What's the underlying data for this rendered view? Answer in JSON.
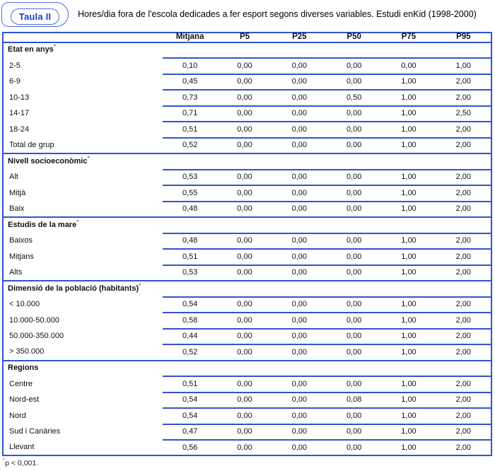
{
  "colors": {
    "accent": "#2f55cd",
    "accent_light": "#4f6ad8",
    "badge_text": "#1e3cd4"
  },
  "title_badge": "Taula II",
  "caption": "Hores/dia fora de l'escola dedicades a fer esport segons diverses variables. Estudi enKid (1998-2000)",
  "table": {
    "columns": [
      "Mitjana",
      "P5",
      "P25",
      "P50",
      "P75",
      "P95"
    ],
    "sections": [
      {
        "header": "Etat en anys*",
        "rows": [
          {
            "label": "2-5",
            "values": [
              "0,10",
              "0,00",
              "0,00",
              "0,00",
              "0,00",
              "1,00"
            ]
          },
          {
            "label": "6-9",
            "values": [
              "0,45",
              "0,00",
              "0,00",
              "0,00",
              "1,00",
              "2,00"
            ]
          },
          {
            "label": "10-13",
            "values": [
              "0,73",
              "0,00",
              "0,00",
              "0,50",
              "1,00",
              "2,00"
            ]
          },
          {
            "label": "14-17",
            "values": [
              "0,71",
              "0,00",
              "0,00",
              "0,00",
              "1,00",
              "2,50"
            ]
          },
          {
            "label": "18-24",
            "values": [
              "0,51",
              "0,00",
              "0,00",
              "0,00",
              "1,00",
              "2,00"
            ]
          },
          {
            "label": "Total de grup",
            "values": [
              "0,52",
              "0,00",
              "0,00",
              "0,00",
              "1,00",
              "2,00"
            ]
          }
        ]
      },
      {
        "header": "Nivell socioeconòmic*",
        "rows": [
          {
            "label": "Alt",
            "values": [
              "0,53",
              "0,00",
              "0,00",
              "0,00",
              "1,00",
              "2,00"
            ]
          },
          {
            "label": "Mitjà",
            "values": [
              "0,55",
              "0,00",
              "0,00",
              "0,00",
              "1,00",
              "2,00"
            ]
          },
          {
            "label": "Baix",
            "values": [
              "0,48",
              "0,00",
              "0,00",
              "0,00",
              "1,00",
              "2,00"
            ]
          }
        ]
      },
      {
        "header": "Estudis de la mare*",
        "rows": [
          {
            "label": "Baixos",
            "values": [
              "0,48",
              "0,00",
              "0,00",
              "0,00",
              "1,00",
              "2,00"
            ]
          },
          {
            "label": "Mitjans",
            "values": [
              "0,51",
              "0,00",
              "0,00",
              "0,00",
              "1,00",
              "2,00"
            ]
          },
          {
            "label": "Alts",
            "values": [
              "0,53",
              "0,00",
              "0,00",
              "0,00",
              "1,00",
              "2,00"
            ]
          }
        ]
      },
      {
        "header": "Dimensió de la població (habitants)*",
        "rows": [
          {
            "label": "< 10.000",
            "values": [
              "0,54",
              "0,00",
              "0,00",
              "0,00",
              "1,00",
              "2,00"
            ]
          },
          {
            "label": "10.000-50.000",
            "values": [
              "0,58",
              "0,00",
              "0,00",
              "0,00",
              "1,00",
              "2,00"
            ]
          },
          {
            "label": "50.000-350.000",
            "values": [
              "0,44",
              "0,00",
              "0,00",
              "0,00",
              "1,00",
              "2,00"
            ]
          },
          {
            "label": "> 350.000",
            "values": [
              "0,52",
              "0,00",
              "0,00",
              "0,00",
              "1,00",
              "2,00"
            ]
          }
        ]
      },
      {
        "header": "Regions",
        "rows": [
          {
            "label": "Centre",
            "values": [
              "0,51",
              "0,00",
              "0,00",
              "0,00",
              "1,00",
              "2,00"
            ]
          },
          {
            "label": "Nord-est",
            "values": [
              "0,54",
              "0,00",
              "0,00",
              "0,08",
              "1,00",
              "2,00"
            ]
          },
          {
            "label": "Nord",
            "values": [
              "0,54",
              "0,00",
              "0,00",
              "0,00",
              "1,00",
              "2,00"
            ]
          },
          {
            "label": "Sud i Canàries",
            "values": [
              "0,47",
              "0,00",
              "0,00",
              "0,00",
              "1,00",
              "2,00"
            ]
          },
          {
            "label": "Llevant",
            "values": [
              "0,56",
              "0,00",
              "0,00",
              "0,00",
              "1,00",
              "2,00"
            ]
          }
        ]
      }
    ]
  },
  "footnote": "*p < 0,001."
}
